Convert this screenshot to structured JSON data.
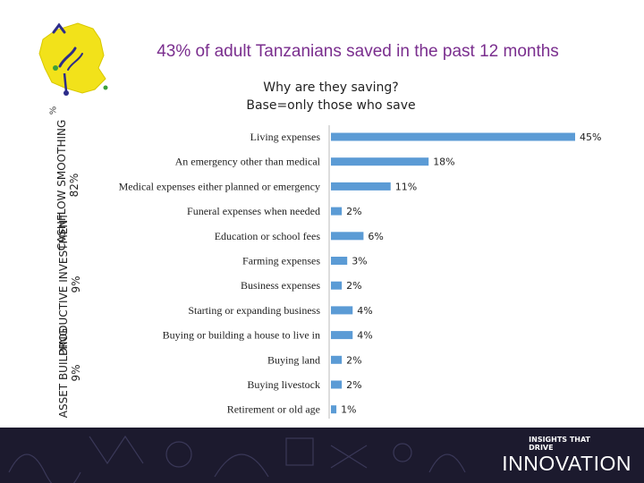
{
  "title": "43% of adult Tanzanians saved in the past 12 months",
  "subtitle_line1": "Why are they saving?",
  "subtitle_line2": "Base=only those who save",
  "corner_label": "%",
  "groups": [
    {
      "name": "CASHFLOW SMOOTHING",
      "name_line1": "CASHFLOW",
      "name_line2": "SMOOTHING",
      "share": "82%"
    },
    {
      "name": "PRODUCTIVE INVESTMENT",
      "name_line1": "PRODUCTIVE",
      "name_line2": "INVESTMENT",
      "share": "9%"
    },
    {
      "name": "ASSET BUILDING",
      "name_line1": "ASSET",
      "name_line2": "BUILDING",
      "share": "9%"
    }
  ],
  "colors": {
    "bar": "#5b9bd5",
    "title": "#7a2e8e",
    "footer_bg": "#1c1a2e",
    "map_fill": "#f2e21a"
  },
  "footer": {
    "tagline_line1": "INSIGHTS THAT",
    "tagline_line2": "DRIVE",
    "brand": "INNOVATION"
  },
  "chart_data": {
    "type": "bar",
    "orientation": "horizontal",
    "title": "Why are they saving?",
    "categories": [
      "Living expenses",
      "An emergency other than medical",
      "Medical expenses either planned or emergency",
      "Funeral expenses when needed",
      "Education or school fees",
      "Farming expenses",
      "Business expenses",
      "Starting or expanding business",
      "Buying or building a house to live in",
      "Buying land",
      "Buying livestock",
      "Retirement or old age"
    ],
    "values": [
      45,
      18,
      11,
      2,
      6,
      3,
      2,
      4,
      4,
      2,
      2,
      1
    ],
    "value_labels": [
      "45%",
      "18%",
      "11%",
      "2%",
      "6%",
      "3%",
      "2%",
      "4%",
      "4%",
      "2%",
      "2%",
      "1%"
    ],
    "xlim": [
      0,
      45
    ],
    "unit": "%"
  }
}
